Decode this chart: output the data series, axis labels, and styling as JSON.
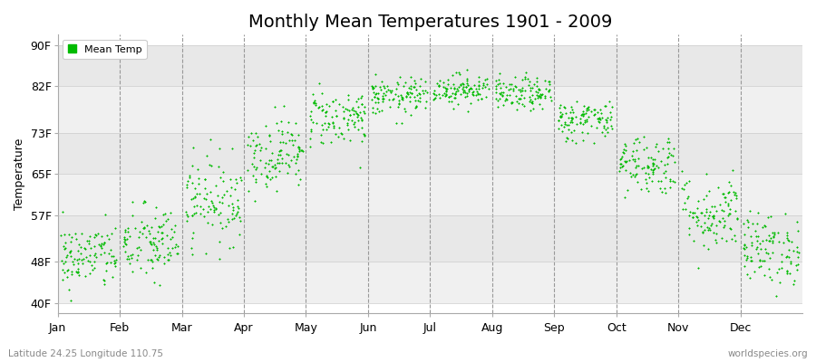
{
  "title": "Monthly Mean Temperatures 1901 - 2009",
  "ylabel": "Temperature",
  "xlabel_labels": [
    "Jan",
    "Feb",
    "Mar",
    "Apr",
    "May",
    "Jun",
    "Jul",
    "Aug",
    "Sep",
    "Oct",
    "Nov",
    "Dec"
  ],
  "yticks": [
    40,
    48,
    57,
    65,
    73,
    82,
    90
  ],
  "ytick_labels": [
    "40F",
    "48F",
    "57F",
    "65F",
    "73F",
    "82F",
    "90F"
  ],
  "ylim": [
    38,
    92
  ],
  "background_color": "#ffffff",
  "plot_bg_color": "#ffffff",
  "band_colors": [
    "#f0f0f0",
    "#e8e8e8"
  ],
  "dot_color": "#00bb00",
  "title_fontsize": 14,
  "legend_label": "Mean Temp",
  "footnote_left": "Latitude 24.25 Longitude 110.75",
  "footnote_right": "worldspecies.org",
  "monthly_means_f": [
    49.0,
    51.5,
    60.0,
    69.0,
    76.0,
    80.0,
    81.5,
    80.5,
    75.5,
    67.0,
    57.5,
    50.5
  ],
  "monthly_std_f": [
    3.2,
    3.8,
    4.2,
    3.5,
    2.8,
    1.8,
    1.5,
    1.6,
    2.0,
    3.0,
    3.8,
    3.5
  ],
  "n_years": 109,
  "seed": 42
}
